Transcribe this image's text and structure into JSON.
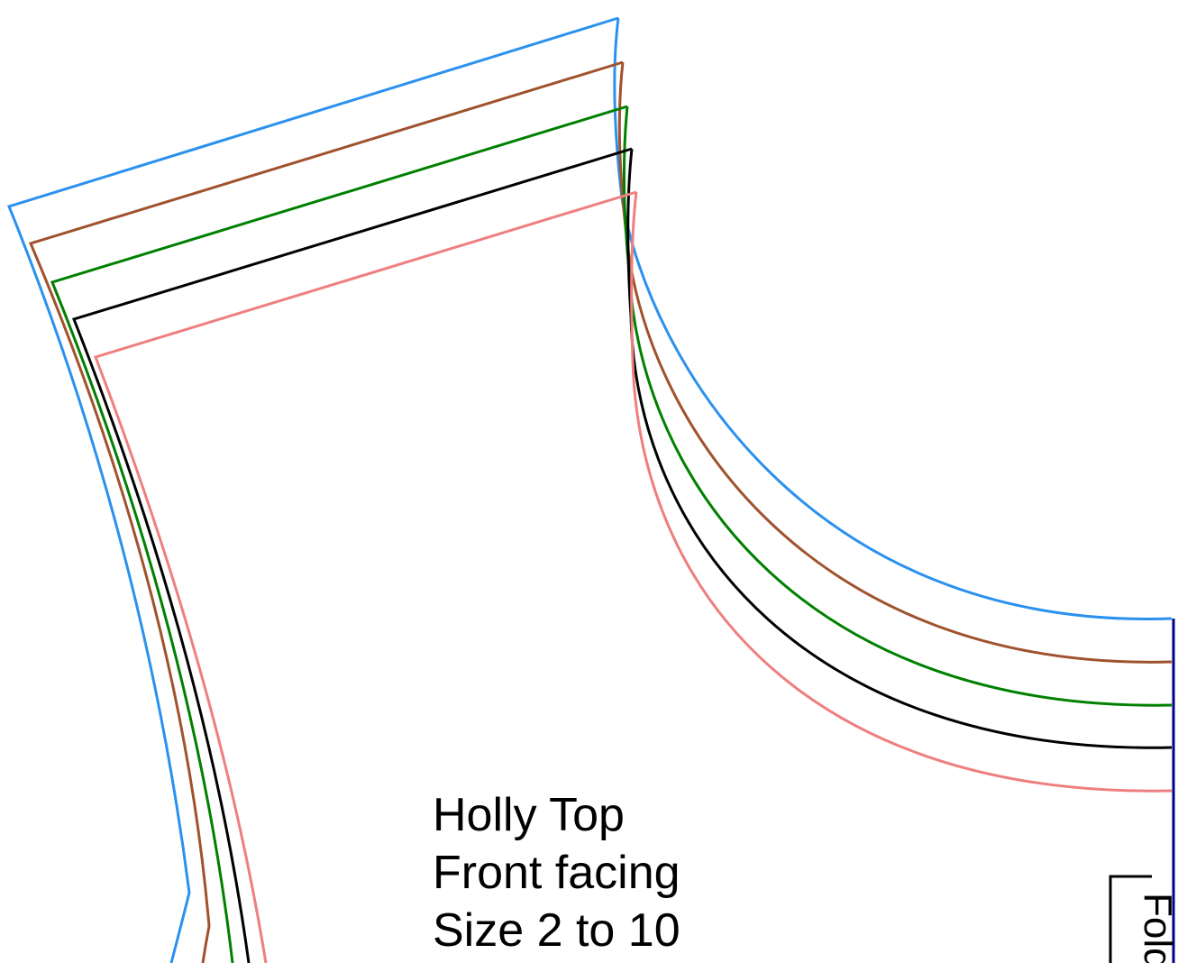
{
  "pattern": {
    "title": "Holly Top",
    "piece": "Front facing",
    "sizes": "Size 2 to 10",
    "fold_label": "Fold",
    "size_lines": [
      {
        "color": "#2b91ee"
      },
      {
        "color": "#a0522d"
      },
      {
        "color": "#008000"
      },
      {
        "color": "#000000"
      },
      {
        "color": "#ef7f7f"
      }
    ],
    "fold_line_color": "#00008b"
  }
}
